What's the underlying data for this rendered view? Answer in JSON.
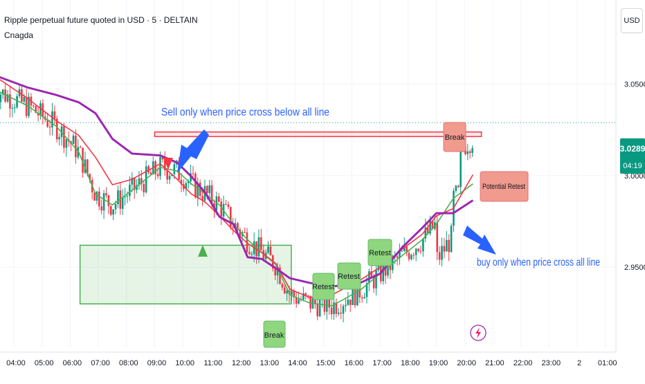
{
  "header": {
    "symbol_line": "Ripple perpetual future quoted in USD · 5 · DELTAIN",
    "author": "Cnagda",
    "currency_button": "USD"
  },
  "price_label": {
    "price": "3.0289",
    "countdown": "04:19"
  },
  "annotations": {
    "sell_note": "Sell only when price cross below all line",
    "buy_note": "buy only when price cross all line",
    "break_top": "Break",
    "potential_retest": "Potential Retest",
    "break_bottom": "Break",
    "retest_1": "Retest",
    "retest_2": "Retest",
    "retest_3": "Retest"
  },
  "colors": {
    "up_candle": "#089981",
    "down_candle": "#f23645",
    "ma_purple": "#9c27b0",
    "ma_red": "#f23645",
    "ma_green": "#4caf50",
    "last_price": "#089981",
    "note_blue": "#2962ff",
    "label_red_fill": "#f19a8e",
    "label_green_fill": "#8fd67e"
  },
  "chart_data": {
    "type": "candlestick",
    "title": "Ripple perpetual future quoted in USD · 5 · DELTAIN",
    "x_ticks": [
      "04:00",
      "05:00",
      "06:00",
      "07:00",
      "08:00",
      "09:00",
      "10:00",
      "11:00",
      "12:00",
      "13:00",
      "14:00",
      "15:00",
      "16:00",
      "17:00",
      "18:00",
      "19:00",
      "20:00",
      "21:00",
      "22:00",
      "23:00",
      "2",
      "01:00"
    ],
    "y_ticks": [
      "3.0500",
      "3.0000",
      "2.9500"
    ],
    "y_range": [
      2.9063,
      3.0958
    ],
    "last_price": 3.0289,
    "series": [
      {
        "name": "",
        "color": "purple",
        "points": [
          [
            3.25,
            3.0551
          ],
          [
            4.5,
            3.048
          ],
          [
            5.5,
            3.044
          ],
          [
            6.3,
            3.04
          ],
          [
            6.9,
            3.034
          ],
          [
            7.5,
            3.02
          ],
          [
            8.2,
            3.012
          ],
          [
            9.2,
            3.011
          ],
          [
            9.8,
            3.007
          ],
          [
            10.3,
            2.9995
          ],
          [
            10.8,
            2.9905
          ],
          [
            11.3,
            2.9775
          ],
          [
            11.8,
            2.9735
          ],
          [
            12.3,
            2.9555
          ],
          [
            12.8,
            2.9545
          ],
          [
            13.3,
            2.9495
          ],
          [
            13.8,
            2.944
          ],
          [
            14.5,
            2.9415
          ],
          [
            15.3,
            2.9395
          ],
          [
            16.3,
            2.9415
          ],
          [
            17.0,
            2.9465
          ],
          [
            17.8,
            2.961
          ],
          [
            18.5,
            2.9715
          ],
          [
            19.0,
            2.9795
          ],
          [
            19.6,
            2.9795
          ],
          [
            20.3,
            2.9865
          ]
        ]
      },
      {
        "name": "",
        "color": "red",
        "points": [
          [
            3.25,
            3.055
          ],
          [
            4.5,
            3.042
          ],
          [
            5.5,
            3.03
          ],
          [
            6.3,
            3.022
          ],
          [
            6.9,
            3.01
          ],
          [
            7.5,
            2.995
          ],
          [
            8.2,
            2.998
          ],
          [
            9.2,
            3.0065
          ],
          [
            9.8,
            2.998
          ],
          [
            10.3,
            2.99
          ],
          [
            10.8,
            2.9855
          ],
          [
            11.3,
            2.978
          ],
          [
            11.8,
            2.97
          ],
          [
            12.3,
            2.963
          ],
          [
            12.8,
            2.958
          ],
          [
            13.3,
            2.952
          ],
          [
            13.8,
            2.938
          ],
          [
            14.5,
            2.9335
          ],
          [
            15.3,
            2.935
          ],
          [
            16.3,
            2.943
          ],
          [
            17.0,
            2.95
          ],
          [
            17.8,
            2.96
          ],
          [
            18.5,
            2.968
          ],
          [
            19.0,
            2.978
          ],
          [
            19.6,
            2.982
          ],
          [
            20.3,
            3.0005
          ]
        ]
      },
      {
        "name": "",
        "color": "green",
        "points": [
          [
            3.25,
            3.0475
          ],
          [
            4.5,
            3.038
          ],
          [
            5.5,
            3.027
          ],
          [
            6.3,
            3.013
          ],
          [
            6.9,
            2.99
          ],
          [
            7.5,
            2.984
          ],
          [
            8.2,
            2.992
          ],
          [
            9.2,
            3.0045
          ],
          [
            9.8,
            3.0025
          ],
          [
            10.3,
            2.9955
          ],
          [
            10.8,
            2.99
          ],
          [
            11.3,
            2.984
          ],
          [
            11.8,
            2.9735
          ],
          [
            12.3,
            2.965
          ],
          [
            12.8,
            2.958
          ],
          [
            13.3,
            2.9515
          ],
          [
            13.8,
            2.935
          ],
          [
            14.5,
            2.9305
          ],
          [
            15.3,
            2.929
          ],
          [
            16.3,
            2.9375
          ],
          [
            17.0,
            2.9465
          ],
          [
            17.8,
            2.9565
          ],
          [
            18.5,
            2.965
          ],
          [
            19.0,
            2.9735
          ],
          [
            19.6,
            2.9875
          ],
          [
            20.3,
            2.9955
          ]
        ]
      }
    ],
    "zones": [
      {
        "type": "demand",
        "x0": 6.35,
        "x1": 13.85,
        "y0": 2.93,
        "y1": 2.962,
        "color": "green"
      },
      {
        "type": "resistance",
        "x0": 9.0,
        "x1": 20.6,
        "y0": 3.0213,
        "y1": 3.0238,
        "color": "red"
      }
    ],
    "grid": true,
    "legend": "none"
  }
}
